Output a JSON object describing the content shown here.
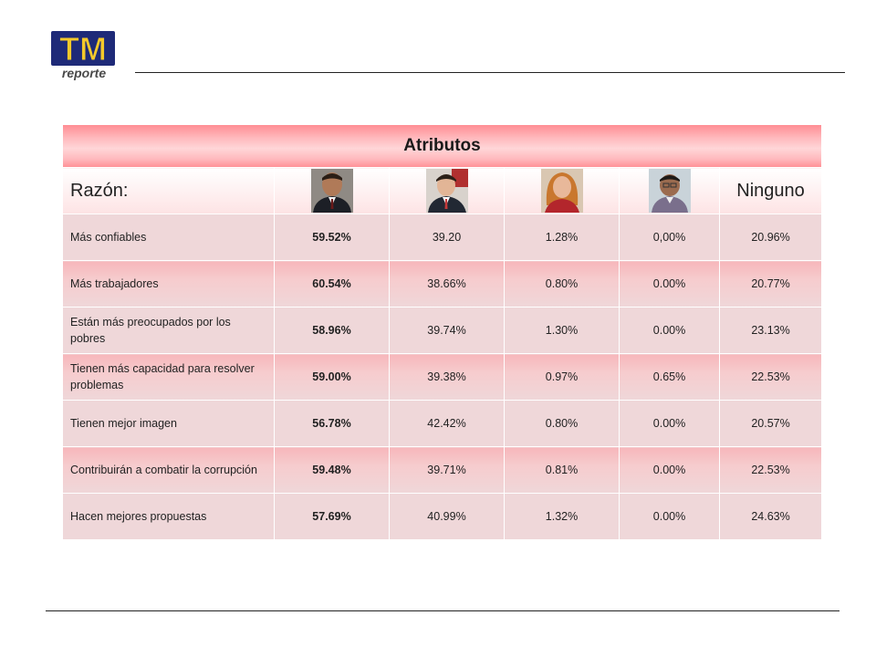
{
  "logo": {
    "big_text": "TM",
    "small_text": "reporte",
    "colors": {
      "fill": "#f5c92a",
      "outline": "#1e2a78",
      "sub": "#4a4a4a"
    }
  },
  "table": {
    "title": "Atributos",
    "header": {
      "razon_label": "Razón:",
      "candidate_photos": [
        "candidate-1-photo",
        "candidate-2-photo",
        "candidate-3-photo",
        "candidate-4-photo"
      ],
      "ninguno_label": "Ninguno"
    },
    "rows": [
      {
        "label": "Más confiables",
        "values": [
          "59.52%",
          "39.20",
          "1.28%",
          "0,00%",
          "20.96%"
        ]
      },
      {
        "label": "Más trabajadores",
        "values": [
          "60.54%",
          "38.66%",
          "0.80%",
          "0.00%",
          "20.77%"
        ]
      },
      {
        "label": "Están más preocupados por los pobres",
        "values": [
          "58.96%",
          "39.74%",
          "1.30%",
          "0.00%",
          "23.13%"
        ]
      },
      {
        "label": "Tienen más capacidad para resolver problemas",
        "values": [
          "59.00%",
          "39.38%",
          "0.97%",
          "0.65%",
          "22.53%"
        ]
      },
      {
        "label": "Tienen mejor imagen",
        "values": [
          "56.78%",
          "42.42%",
          "0.80%",
          "0.00%",
          "20.57%"
        ]
      },
      {
        "label": "Contribuirán a combatir la corrupción",
        "values": [
          "59.48%",
          "39.71%",
          "0.81%",
          "0.00%",
          "22.53%"
        ]
      },
      {
        "label": "Hacen mejores propuestas",
        "values": [
          "57.69%",
          "40.99%",
          "1.32%",
          "0.00%",
          "24.63%"
        ]
      }
    ]
  },
  "colors": {
    "title_bar": "#ff8f95",
    "row_solid": "#efd7d9",
    "row_grad_top": "#f7b7bb"
  }
}
